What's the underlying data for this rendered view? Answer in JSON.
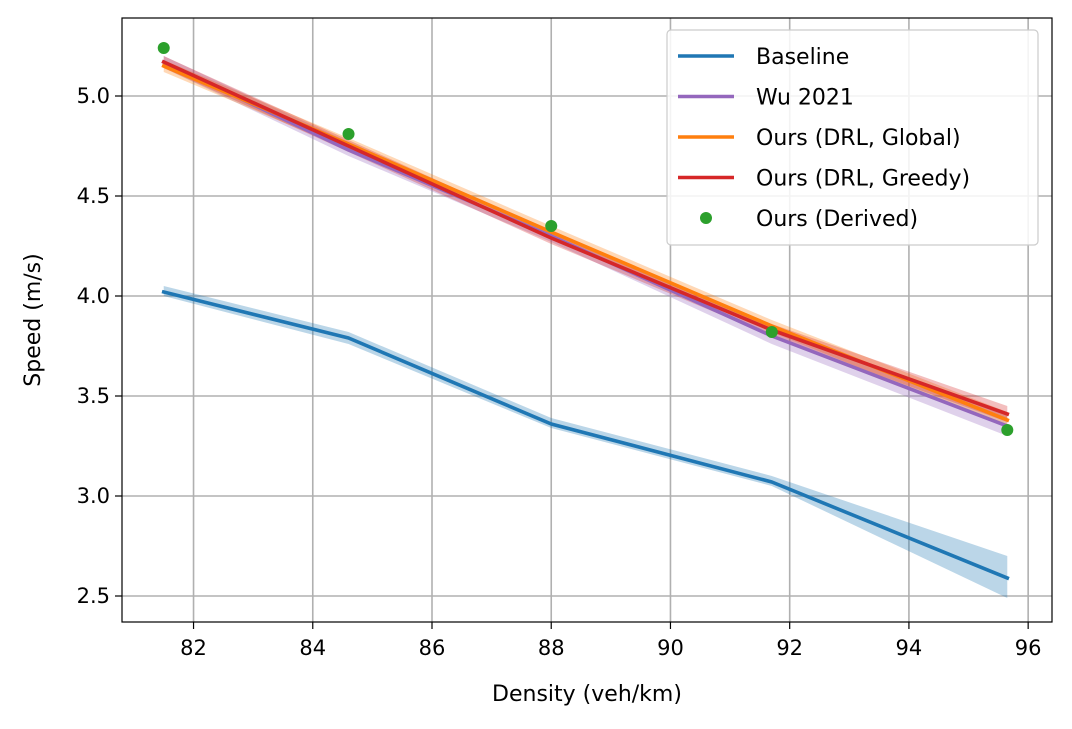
{
  "chart_data": {
    "type": "line",
    "xlabel": "Density (veh/km)",
    "ylabel": "Speed (m/s)",
    "xlim": [
      80.8,
      96.4
    ],
    "ylim": [
      2.37,
      5.39
    ],
    "xticks": [
      82,
      84,
      86,
      88,
      90,
      92,
      94,
      96
    ],
    "yticks": [
      2.5,
      3.0,
      3.5,
      4.0,
      4.5,
      5.0
    ],
    "grid": true,
    "legend_position": "top-right",
    "series": [
      {
        "name": "Baseline",
        "color": "#1f77b4",
        "style": "line",
        "x": [
          81.5,
          84.6,
          88.0,
          91.7,
          95.65
        ],
        "y": [
          4.02,
          3.79,
          3.36,
          3.07,
          2.59
        ],
        "band_lower": [
          4.0,
          3.76,
          3.34,
          3.05,
          2.49
        ],
        "band_upper": [
          4.05,
          3.82,
          3.39,
          3.1,
          2.7
        ]
      },
      {
        "name": "Wu 2021",
        "color": "#9467bd",
        "style": "line",
        "x": [
          81.5,
          84.6,
          88.0,
          91.7,
          95.65
        ],
        "y": [
          5.17,
          4.73,
          4.3,
          3.8,
          3.35
        ],
        "band_lower": [
          5.14,
          4.7,
          4.27,
          3.76,
          3.3
        ],
        "band_upper": [
          5.2,
          4.77,
          4.33,
          3.84,
          3.41
        ]
      },
      {
        "name": "Ours (DRL, Global)",
        "color": "#ff7f0e",
        "style": "line",
        "x": [
          81.5,
          84.6,
          88.0,
          91.7,
          95.65
        ],
        "y": [
          5.15,
          4.76,
          4.32,
          3.85,
          3.38
        ],
        "band_lower": [
          5.12,
          4.73,
          4.29,
          3.82,
          3.34
        ],
        "band_upper": [
          5.18,
          4.79,
          4.35,
          3.88,
          3.42
        ]
      },
      {
        "name": "Ours (DRL, Greedy)",
        "color": "#d62728",
        "style": "line",
        "x": [
          81.5,
          84.6,
          88.0,
          91.7,
          95.65
        ],
        "y": [
          5.17,
          4.75,
          4.29,
          3.83,
          3.41
        ],
        "band_lower": [
          5.14,
          4.72,
          4.26,
          3.8,
          3.37
        ],
        "band_upper": [
          5.2,
          4.78,
          4.32,
          3.86,
          3.45
        ]
      },
      {
        "name": "Ours (Derived)",
        "color": "#2ca02c",
        "style": "scatter",
        "x": [
          81.5,
          84.6,
          88.0,
          91.7,
          95.65
        ],
        "y": [
          5.24,
          4.81,
          4.35,
          3.82,
          3.33
        ]
      }
    ]
  }
}
